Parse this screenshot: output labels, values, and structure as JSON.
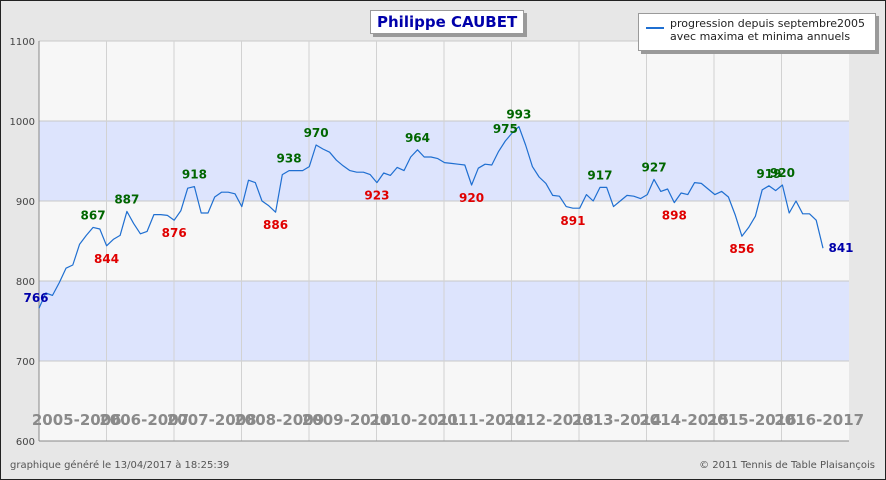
{
  "chart_data": {
    "type": "line",
    "title": "Philippe CAUBET",
    "legend": {
      "placement": "top-right",
      "lines": [
        "progression depuis septembre2005",
        "avec maxima et minima annuels"
      ]
    },
    "ylim": [
      600,
      1100
    ],
    "yticks": [
      600,
      700,
      800,
      900,
      1000,
      1100
    ],
    "bands": [
      [
        700,
        800
      ],
      [
        900,
        1000
      ]
    ],
    "seasons": [
      "2005-2006",
      "2006-2007",
      "2007-2008",
      "2008-2009",
      "2009-2010",
      "2010-2011",
      "2011-2012",
      "2012-2013",
      "2013-2014",
      "2014-2015",
      "2015-2016",
      "2016-2017"
    ],
    "series": [
      {
        "values": [
          766,
          785,
          782,
          798,
          816,
          820,
          846,
          857,
          867,
          865,
          844,
          852,
          857,
          887,
          872,
          859,
          862,
          883,
          883,
          882,
          876,
          888,
          916,
          918,
          885,
          885,
          905,
          911,
          911,
          909,
          893,
          926,
          923,
          900,
          894,
          886,
          933,
          938,
          938,
          938,
          943,
          970,
          965,
          961,
          951,
          944,
          938,
          936,
          936,
          933,
          923,
          935,
          932,
          942,
          938,
          955,
          964,
          955,
          955,
          953,
          948,
          947,
          946,
          945,
          920,
          941,
          946,
          945,
          962,
          975,
          985,
          993,
          970,
          943,
          930,
          922,
          907,
          906,
          893,
          891,
          891,
          908,
          900,
          917,
          917,
          893,
          900,
          907,
          906,
          903,
          908,
          927,
          912,
          915,
          898,
          910,
          908,
          923,
          922,
          915,
          908,
          912,
          905,
          883,
          856,
          867,
          881,
          914,
          919,
          913,
          920,
          885,
          900,
          884,
          884,
          876,
          841
        ]
      }
    ],
    "annotations": [
      {
        "label": "766",
        "index": 0,
        "value": 766,
        "kind": "current"
      },
      {
        "label": "867",
        "index": 8,
        "value": 867,
        "kind": "max"
      },
      {
        "label": "844",
        "index": 10,
        "value": 844,
        "kind": "min"
      },
      {
        "label": "887",
        "index": 13,
        "value": 887,
        "kind": "max"
      },
      {
        "label": "876",
        "index": 20,
        "value": 876,
        "kind": "min"
      },
      {
        "label": "918",
        "index": 23,
        "value": 918,
        "kind": "max"
      },
      {
        "label": "886",
        "index": 35,
        "value": 886,
        "kind": "min"
      },
      {
        "label": "938",
        "index": 37,
        "value": 938,
        "kind": "max"
      },
      {
        "label": "970",
        "index": 41,
        "value": 970,
        "kind": "max"
      },
      {
        "label": "923",
        "index": 50,
        "value": 923,
        "kind": "min"
      },
      {
        "label": "964",
        "index": 56,
        "value": 964,
        "kind": "max"
      },
      {
        "label": "920",
        "index": 64,
        "value": 920,
        "kind": "min"
      },
      {
        "label": "975",
        "index": 69,
        "value": 975,
        "kind": "max"
      },
      {
        "label": "993",
        "index": 71,
        "value": 993,
        "kind": "max"
      },
      {
        "label": "891",
        "index": 79,
        "value": 891,
        "kind": "min"
      },
      {
        "label": "917",
        "index": 83,
        "value": 917,
        "kind": "max"
      },
      {
        "label": "927",
        "index": 91,
        "value": 927,
        "kind": "max"
      },
      {
        "label": "898",
        "index": 94,
        "value": 898,
        "kind": "min"
      },
      {
        "label": "856",
        "index": 104,
        "value": 856,
        "kind": "min"
      },
      {
        "label": "919",
        "index": 108,
        "value": 919,
        "kind": "max"
      },
      {
        "label": "920",
        "index": 110,
        "value": 920,
        "kind": "max"
      },
      {
        "label": "841",
        "index": 116,
        "value": 841,
        "kind": "current"
      }
    ],
    "colors": {
      "line": "#1f6fd1",
      "band": "#dde4fd",
      "background": "#f7f7f7",
      "max": "#006600",
      "min": "#e00000",
      "current": "#0000aa",
      "season_label": "#8a8a8a"
    }
  },
  "footer": {
    "generated": "graphique généré le 13/04/2017 à 18:25:39",
    "copyright": "© 2011 Tennis de Table Plaisançois"
  }
}
